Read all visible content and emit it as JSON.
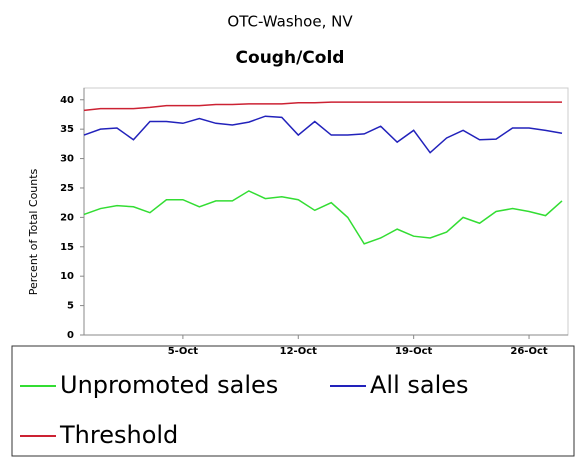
{
  "chart_data": {
    "type": "line",
    "title": "OTC-Washoe, NV",
    "subtitle": "Cough/Cold",
    "y_label": "Percent of Total Counts",
    "categories": [
      null,
      null,
      null,
      null,
      null,
      null,
      "5-Oct",
      null,
      null,
      null,
      null,
      null,
      null,
      "12-Oct",
      null,
      null,
      null,
      null,
      null,
      null,
      "19-Oct",
      null,
      null,
      null,
      null,
      null,
      null,
      "26-Oct",
      null,
      null
    ],
    "series": [
      {
        "name": "Unpromoted sales",
        "color": "#33dd33",
        "values": [
          20.5,
          21.5,
          22,
          21.8,
          20.8,
          23,
          23,
          21.8,
          22.8,
          22.8,
          24.5,
          23.2,
          23.5,
          23,
          21.2,
          22.5,
          20,
          15.5,
          16.5,
          18,
          16.8,
          16.5,
          17.5,
          20,
          19,
          21,
          21.5,
          21,
          20.3,
          22.8
        ]
      },
      {
        "name": "All sales",
        "color": "#2222bb",
        "values": [
          34,
          35,
          35.2,
          33.2,
          36.3,
          36.3,
          36,
          36.8,
          36,
          35.7,
          36.2,
          37.2,
          37,
          34,
          36.3,
          34,
          34,
          34.2,
          35.5,
          32.8,
          34.8,
          31,
          33.5,
          34.8,
          33.2,
          33.3,
          35.2,
          35.2,
          34.8,
          34.3
        ]
      },
      {
        "name": "Threshold",
        "color": "#cc2233",
        "values": [
          38.2,
          38.5,
          38.5,
          38.5,
          38.7,
          39,
          39,
          39,
          39.2,
          39.2,
          39.3,
          39.3,
          39.3,
          39.5,
          39.5,
          39.6,
          39.6,
          39.6,
          39.6,
          39.6,
          39.6,
          39.6,
          39.6,
          39.6,
          39.6,
          39.6,
          39.6,
          39.6,
          39.6,
          39.6
        ]
      }
    ],
    "ylim": [
      0,
      42
    ],
    "yticks": [
      0,
      5,
      10,
      15,
      20,
      25,
      30,
      35,
      40
    ],
    "grid": false
  }
}
